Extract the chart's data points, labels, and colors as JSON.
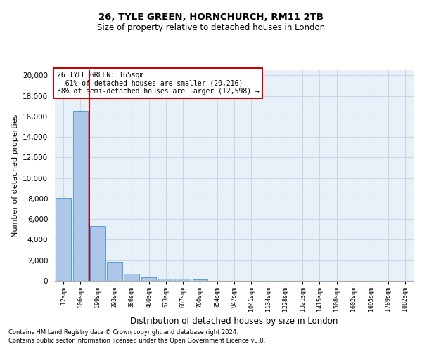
{
  "title1": "26, TYLE GREEN, HORNCHURCH, RM11 2TB",
  "title2": "Size of property relative to detached houses in London",
  "xlabel": "Distribution of detached houses by size in London",
  "ylabel": "Number of detached properties",
  "footnote1": "Contains HM Land Registry data © Crown copyright and database right 2024.",
  "footnote2": "Contains public sector information licensed under the Open Government Licence v3.0.",
  "categories": [
    "12sqm",
    "106sqm",
    "199sqm",
    "293sqm",
    "386sqm",
    "480sqm",
    "573sqm",
    "667sqm",
    "760sqm",
    "854sqm",
    "947sqm",
    "1041sqm",
    "1134sqm",
    "1228sqm",
    "1321sqm",
    "1415sqm",
    "1508sqm",
    "1602sqm",
    "1695sqm",
    "1789sqm",
    "1882sqm"
  ],
  "values": [
    8050,
    16550,
    5300,
    1850,
    700,
    350,
    200,
    175,
    125,
    0,
    0,
    0,
    0,
    0,
    0,
    0,
    0,
    0,
    0,
    0,
    0
  ],
  "bar_color": "#aec6e8",
  "bar_edge_color": "#5b9bd5",
  "grid_color": "#c8d8e8",
  "background_color": "#e8f0f8",
  "annotation_text": "26 TYLE GREEN: 165sqm\n← 61% of detached houses are smaller (20,216)\n38% of semi-detached houses are larger (12,598) →",
  "annotation_box_color": "#ffffff",
  "annotation_border_color": "#cc0000",
  "red_line_color": "#cc0000",
  "red_line_x": 1.5,
  "ylim": [
    0,
    20500
  ],
  "yticks": [
    0,
    2000,
    4000,
    6000,
    8000,
    10000,
    12000,
    14000,
    16000,
    18000,
    20000
  ]
}
